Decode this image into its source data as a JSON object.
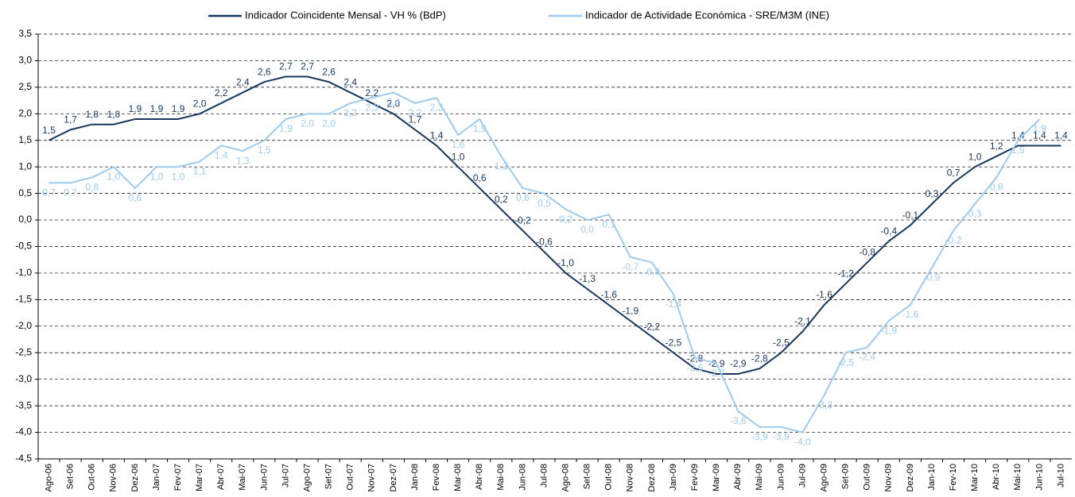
{
  "chart_data": {
    "type": "line",
    "categories": [
      "Ago-06",
      "Set-06",
      "Out-06",
      "Nov-06",
      "Dez-06",
      "Jan-07",
      "Fev-07",
      "Mar-07",
      "Abr-07",
      "Mai-07",
      "Jun-07",
      "Jul-07",
      "Ago-07",
      "Set-07",
      "Out-07",
      "Nov-07",
      "Dez-07",
      "Jan-08",
      "Fev-08",
      "Mar-08",
      "Abr-08",
      "Mai-08",
      "Jun-08",
      "Jul-08",
      "Ago-08",
      "Set-08",
      "Out-08",
      "Nov-08",
      "Dez-08",
      "Jan-09",
      "Fev-09",
      "Mar-09",
      "Abr-09",
      "Mai-09",
      "Jun-09",
      "Jul-09",
      "Ago-09",
      "Set-09",
      "Out-09",
      "Nov-09",
      "Dez-09",
      "Jan-10",
      "Fev-10",
      "Mar-10",
      "Abr-10",
      "Mai-10",
      "Jun-10",
      "Jul-10"
    ],
    "series": [
      {
        "name": "Indicador Coincidente Mensal - VH % (BdP)",
        "color": "#17375e",
        "values": [
          1.5,
          1.7,
          1.8,
          1.8,
          1.9,
          1.9,
          1.9,
          2.0,
          2.2,
          2.4,
          2.6,
          2.7,
          2.7,
          2.6,
          2.4,
          2.2,
          2.0,
          1.7,
          1.4,
          1.0,
          0.6,
          0.2,
          -0.2,
          -0.6,
          -1.0,
          -1.3,
          -1.6,
          -1.9,
          -2.2,
          -2.5,
          -2.8,
          -2.9,
          -2.9,
          -2.8,
          -2.5,
          -2.1,
          -1.6,
          -1.2,
          -0.8,
          -0.4,
          -0.1,
          0.3,
          0.7,
          1.0,
          1.2,
          1.4,
          1.4,
          1.4
        ],
        "value_labels": [
          "1,5",
          "1,7",
          "1,8",
          "1,8",
          "1,9",
          "1,9",
          "1,9",
          "2,0",
          "2,2",
          "2,4",
          "2,6",
          "2,7",
          "2,7",
          "2,6",
          "2,4",
          "2,2",
          "2,0",
          "1,7",
          "1,4",
          "1,0",
          "0,6",
          "0,2",
          "-0,2",
          "-0,6",
          "-1,0",
          "-1,3",
          "-1,6",
          "-1,9",
          "-2,2",
          "-2,5",
          "-2,8",
          "-2,9",
          "-2,9",
          "-2,8",
          "-2,5",
          "-2,1",
          "-1,6",
          "-1,2",
          "-0,8",
          "-0,4",
          "-0,1",
          "0,3",
          "0,7",
          "1,0",
          "1,2",
          "1,4",
          "1,4",
          "1,4"
        ]
      },
      {
        "name": "Indicador de Actividade Económica - SRE/M3M (INE)",
        "color": "#9dcbef",
        "values": [
          0.7,
          0.7,
          0.8,
          1.0,
          0.6,
          1.0,
          1.0,
          1.1,
          1.4,
          1.3,
          1.5,
          1.9,
          2.0,
          2.0,
          2.2,
          2.3,
          2.4,
          2.2,
          2.3,
          1.6,
          1.9,
          1.2,
          0.6,
          0.5,
          0.2,
          0.0,
          0.1,
          -0.7,
          -0.8,
          -1.4,
          -2.6,
          -2.7,
          -3.6,
          -3.9,
          -3.9,
          -4.0,
          -3.3,
          -2.5,
          -2.4,
          -1.9,
          -1.6,
          -0.9,
          -0.2,
          0.3,
          0.8,
          1.5,
          1.9,
          null
        ],
        "value_labels": [
          "0,7",
          "0,7",
          "0,8",
          "1,0",
          "0,6",
          "1,0",
          "1,0",
          "1,1",
          "1,4",
          "1,3",
          "1,5",
          "1,9",
          "2,0",
          "2,0",
          "2,2",
          "2,3",
          "2,4",
          "2,2",
          "2,3",
          "1,6",
          "1,9",
          "1,2",
          "0,6",
          "0,5",
          "0,2",
          "0,0",
          "0,1",
          "-0,7",
          "-0,8",
          "-1,4",
          "-2,6",
          "-2,7",
          "-3,6",
          "-3,9",
          "-3,9",
          "-4,0",
          "-3,3",
          "-2,5",
          "-2,4",
          "-1,9",
          "-1,6",
          "-0,9",
          "-0,2",
          "0,3",
          "0,8",
          "1,5",
          "1,9",
          null
        ]
      }
    ],
    "ylim": [
      -4.5,
      3.5
    ],
    "yticks": [
      {
        "value": -4.5,
        "label": "-4,5"
      },
      {
        "value": -4,
        "label": "-4,0"
      },
      {
        "value": -3.5,
        "label": "-3,5"
      },
      {
        "value": -3,
        "label": "-3,0"
      },
      {
        "value": -2.5,
        "label": "-2,5"
      },
      {
        "value": -2,
        "label": "-2,0"
      },
      {
        "value": -1.5,
        "label": "-1,5"
      },
      {
        "value": -1,
        "label": "-1,0"
      },
      {
        "value": -0.5,
        "label": "-0,5"
      },
      {
        "value": 0,
        "label": "0,0"
      },
      {
        "value": 0.5,
        "label": "0,5"
      },
      {
        "value": 1,
        "label": "1,0"
      },
      {
        "value": 1.5,
        "label": "1,5"
      },
      {
        "value": 2,
        "label": "2,0"
      },
      {
        "value": 2.5,
        "label": "2,5"
      },
      {
        "value": 3,
        "label": "3,0"
      },
      {
        "value": 3.5,
        "label": "3,5"
      }
    ],
    "grid": true,
    "legend": "top"
  }
}
